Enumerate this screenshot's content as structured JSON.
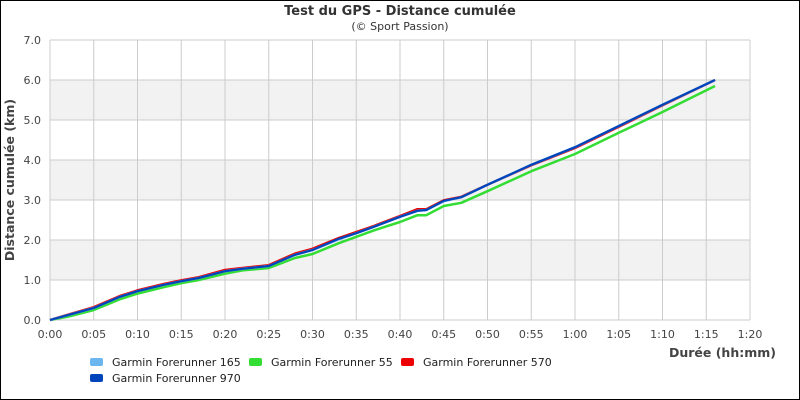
{
  "chart_data": {
    "type": "line",
    "title": "Test du GPS - Distance cumulée",
    "subtitle": "(© Sport Passion)",
    "xlabel": "Durée (hh:mm)",
    "ylabel": "Distance cumulée (km)",
    "xlim": [
      0,
      80
    ],
    "ylim": [
      0,
      7
    ],
    "x_ticks": [
      "0:00",
      "0:05",
      "0:10",
      "0:15",
      "0:20",
      "0:25",
      "0:30",
      "0:35",
      "0:40",
      "0:45",
      "0:50",
      "0:55",
      "1:00",
      "1:05",
      "1:10",
      "1:15",
      "1:20"
    ],
    "y_ticks": [
      "0.0",
      "1.0",
      "2.0",
      "3.0",
      "4.0",
      "5.0",
      "6.0",
      "7.0"
    ],
    "grid": true,
    "legend_position": "bottom",
    "x_minutes": [
      0,
      2,
      5,
      8,
      10,
      13,
      15,
      17,
      20,
      22,
      25,
      28,
      30,
      33,
      35,
      37,
      40,
      42,
      43,
      45,
      47,
      50,
      55,
      60,
      65,
      70,
      76
    ],
    "series": [
      {
        "name": "Garmin Forerunner 165",
        "color": "#6cb6f0",
        "values": [
          0,
          0.12,
          0.3,
          0.58,
          0.72,
          0.88,
          0.97,
          1.05,
          1.22,
          1.28,
          1.35,
          1.63,
          1.75,
          2.02,
          2.17,
          2.33,
          2.58,
          2.73,
          2.75,
          2.97,
          3.07,
          3.38,
          3.88,
          4.32,
          4.85,
          5.38,
          6.0
        ]
      },
      {
        "name": "Garmin Forerunner 55",
        "color": "#33dd33",
        "values": [
          0,
          0.08,
          0.25,
          0.52,
          0.66,
          0.82,
          0.92,
          1.0,
          1.16,
          1.24,
          1.3,
          1.55,
          1.65,
          1.92,
          2.08,
          2.24,
          2.45,
          2.62,
          2.62,
          2.85,
          2.93,
          3.22,
          3.72,
          4.15,
          4.68,
          5.2,
          5.85
        ]
      },
      {
        "name": "Garmin Forerunner 570",
        "color": "#ee0000",
        "values": [
          0,
          0.13,
          0.32,
          0.6,
          0.74,
          0.9,
          0.99,
          1.07,
          1.25,
          1.3,
          1.37,
          1.66,
          1.78,
          2.05,
          2.2,
          2.35,
          2.6,
          2.77,
          2.77,
          2.99,
          3.08,
          3.38,
          3.87,
          4.3,
          4.83,
          5.37,
          6.0
        ]
      },
      {
        "name": "Garmin Forerunner 970",
        "color": "#0044bb",
        "values": [
          0,
          0.12,
          0.3,
          0.58,
          0.72,
          0.88,
          0.97,
          1.05,
          1.22,
          1.28,
          1.35,
          1.63,
          1.75,
          2.03,
          2.17,
          2.33,
          2.58,
          2.73,
          2.75,
          2.98,
          3.07,
          3.38,
          3.88,
          4.32,
          4.85,
          5.38,
          6.0
        ]
      }
    ]
  },
  "colors": {
    "grid": "#cccccc",
    "band": "#f2f2f2"
  }
}
